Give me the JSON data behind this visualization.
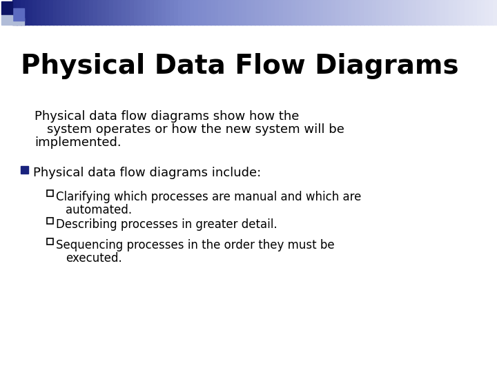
{
  "title": "Physical Data Flow Diagrams",
  "bg_color": "#ffffff",
  "title_color": "#000000",
  "title_fontsize": 28,
  "body_fontsize": 13,
  "sub_fontsize": 12,
  "intro_line1": "Physical data flow diagrams show how the",
  "intro_line2": "system operates or how the new system will be",
  "intro_line3": "implemented.",
  "bullet1": "Physical data flow diagrams include:",
  "sub_bullet1_line1": "Clarifying which processes are manual and which are",
  "sub_bullet1_line2": "     automated.",
  "sub_bullet2": "Describing processes in greater detail.",
  "sub_bullet3_line1": "Sequencing processes in the order they must be",
  "sub_bullet3_line2": "     executed.",
  "bullet_color": "#1a237e",
  "header_bar_dark": "#1a237e",
  "header_bar_mid": "#7986cb",
  "header_bar_light": "#e8eaf6",
  "square_dark": "#0d1464",
  "square_med": "#5c6bc0",
  "square_light": "#b0bcd8"
}
